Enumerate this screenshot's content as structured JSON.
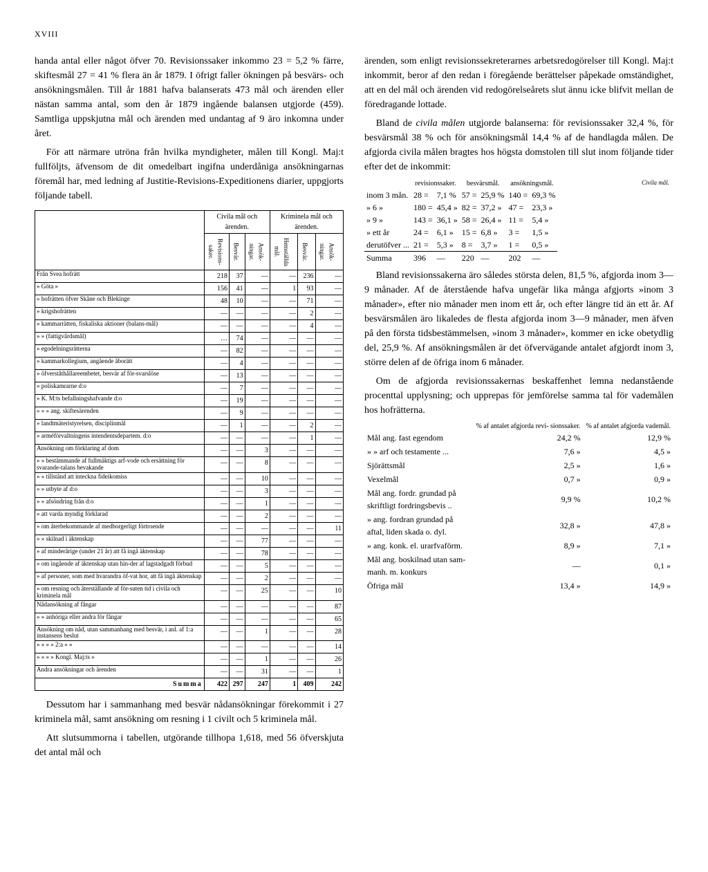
{
  "page_number": "XVIII",
  "left": {
    "p1": "handa antal eller något öfver 70. Revisionssaker inkommo 23 = 5,2 % färre, skiftesmål 27 = 41 % flera än år 1879. I öfrigt faller ökningen på besvärs- och ansökningsmålen. Till år 1881 hafva balanserats 473 mål och ärenden eller nästan samma antal, som den år 1879 ingående balansen utgjorde (459). Samtliga uppskjutna mål och ärenden med undantag af 9 äro inkomna under året.",
    "p2": "För att närmare utröna från hvilka myndigheter, målen till Kongl. Maj:t fullföljts, äfvensom de dit omedelbart ingifna underdåniga ansökningarnas föremål har, med ledning af Justitie-Revisions-Expeditionens diarier, uppgjorts följande tabell.",
    "table_headers": {
      "group1": "Civila mål och ärenden.",
      "group2": "Kriminela mål och ärenden.",
      "c1": "Revisions-saker.",
      "c2": "Besvär.",
      "c3": "Ansök-ningar.",
      "c4": "Hemställda mål.",
      "c5": "Besvär.",
      "c6": "Ansök-ningar."
    },
    "rows": [
      {
        "label": "Från Svea hofrätt",
        "v": [
          "218",
          "37",
          "—",
          "—",
          "236",
          "—"
        ]
      },
      {
        "label": "»   Göta   »",
        "v": [
          "156",
          "41",
          "—",
          "1",
          "93",
          "—"
        ]
      },
      {
        "label": "»   hofrätten öfver Skåne och Blekinge",
        "v": [
          "48",
          "10",
          "—",
          "—",
          "71",
          "—"
        ]
      },
      {
        "label": "»   krigshofrätten",
        "v": [
          "—",
          "—",
          "—",
          "—",
          "2",
          "—"
        ]
      },
      {
        "label": "»   kammarrätten, fiskaliska aktioner (balans-mål)",
        "v": [
          "—",
          "—",
          "—",
          "—",
          "4",
          "—"
        ]
      },
      {
        "label": "»      »      (fattigvårdsmål)",
        "v": [
          "…",
          "74",
          "—",
          "—",
          "—",
          "—"
        ]
      },
      {
        "label": "»   egodelningsrätterna",
        "v": [
          "—",
          "82",
          "—",
          "—",
          "—",
          "—"
        ]
      },
      {
        "label": "»   kammarkollegium, angående åborätt",
        "v": [
          "—",
          "4",
          "—",
          "—",
          "—",
          "—"
        ]
      },
      {
        "label": "»   öfverståthållareembetet, besvär af för-svarslöse",
        "v": [
          "—",
          "13",
          "—",
          "—",
          "—",
          "—"
        ]
      },
      {
        "label": "»   poliskamrarne             d:o",
        "v": [
          "—",
          "7",
          "—",
          "—",
          "—",
          "—"
        ]
      },
      {
        "label": "»   K. M:ts befallningshafvande   d:o",
        "v": [
          "—",
          "19",
          "—",
          "—",
          "—",
          "—"
        ]
      },
      {
        "label": "»      »      »      ang. skiftesärenden",
        "v": [
          "—",
          "9",
          "—",
          "—",
          "—",
          "—"
        ]
      },
      {
        "label": "»   landtmäteristyrelsen, disciplinmål",
        "v": [
          "—",
          "1",
          "—",
          "—",
          "2",
          "—"
        ]
      },
      {
        "label": "»   arméförvaltningens intendentsdepartem. d:o",
        "v": [
          "—",
          "—",
          "—",
          "—",
          "1",
          "—"
        ]
      },
      {
        "label": "Ansökning om förklaring af dom",
        "v": [
          "—",
          "—",
          "3",
          "—",
          "—",
          "—"
        ]
      },
      {
        "label": "»   »   bestämmande af fullmäktigs arf-vode och ersättning för svarande-talans bevakande",
        "v": [
          "—",
          "—",
          "8",
          "—",
          "—",
          "—"
        ]
      },
      {
        "label": "»   »   tillstånd att inteckna fideikomiss",
        "v": [
          "—",
          "—",
          "10",
          "—",
          "—",
          "—"
        ]
      },
      {
        "label": "»   »   utbyte af d:o",
        "v": [
          "—",
          "—",
          "3",
          "—",
          "—",
          "—"
        ]
      },
      {
        "label": "»   »   afsöndring från d:o",
        "v": [
          "—",
          "—",
          "1",
          "—",
          "—",
          "—"
        ]
      },
      {
        "label": "»   att varda myndig förklarad",
        "v": [
          "—",
          "—",
          "2",
          "—",
          "—",
          "—"
        ]
      },
      {
        "label": "»   om återbekommande af medborgerligt förtroende",
        "v": [
          "—",
          "—",
          "—",
          "—",
          "—",
          "11"
        ]
      },
      {
        "label": "»   »   skilnad i äktenskap",
        "v": [
          "—",
          "—",
          "77",
          "—",
          "—",
          "—"
        ]
      },
      {
        "label": "»   af minderårige (under 21 år) att få ingå äktenskap",
        "v": [
          "—",
          "—",
          "78",
          "—",
          "—",
          "—"
        ]
      },
      {
        "label": "»   om ingående af äktenskap utan hin-der af lagstadgadt förbud",
        "v": [
          "—",
          "—",
          "5",
          "—",
          "—",
          "—"
        ]
      },
      {
        "label": "»   af personer, som med hvarandra öf-vat hor, att få ingå äktenskap",
        "v": [
          "—",
          "—",
          "2",
          "—",
          "—",
          "—"
        ]
      },
      {
        "label": "»   om resning och återställande af för-suten tid i civila och kriminela mål",
        "v": [
          "—",
          "—",
          "25",
          "—",
          "—",
          "10"
        ]
      },
      {
        "label": "Nådansökning af fångar",
        "v": [
          "—",
          "—",
          "—",
          "—",
          "—",
          "87"
        ]
      },
      {
        "label": "»   » anhöriga eller andra för fångar",
        "v": [
          "—",
          "—",
          "—",
          "—",
          "—",
          "65"
        ]
      },
      {
        "label": "Ansökning om nåd, utan sammanhang med besvär, i anl. af 1:a instansens beslut",
        "v": [
          "—",
          "—",
          "1",
          "—",
          "—",
          "28"
        ]
      },
      {
        "label": "»   »   »   »   2:a   »   »",
        "v": [
          "—",
          "—",
          "—",
          "—",
          "—",
          "14"
        ]
      },
      {
        "label": "»   »   »   »   Kongl. Maj:ts   »",
        "v": [
          "—",
          "—",
          "1",
          "—",
          "—",
          "26"
        ]
      },
      {
        "label": "Andra ansökningar och ärenden",
        "v": [
          "—",
          "—",
          "31",
          "—",
          "—",
          "1"
        ]
      }
    ],
    "sum_label": "Summa",
    "sum": [
      "422",
      "297",
      "247",
      "1",
      "409",
      "242"
    ],
    "p3": "Dessutom har i sammanhang med besvär nådansökningar förekommit i 27 kriminela mål, samt ansökning om resning i 1 civilt och 5 kriminela mål.",
    "p4": "Att slutsummorna i tabellen, utgörande tillhopa 1,618, med 56 öfverskjuta det antal mål och"
  },
  "right": {
    "p1": "ärenden, som enligt revisionssekreterarnes arbetsredogörelser till Kongl. Maj:t inkommit, beror af den redan i föregående berättelser påpekade omständighet, att en del mål och ärenden vid redogörelseårets slut ännu icke blifvit mellan de föredragande lottade.",
    "margin_note": "Civila mål.",
    "p2a": "Bland de ",
    "p2b": "civila målen",
    "p2c": " utgjorde balanserna: för revisionssaker 32,4 %, för besvärsmål 38 % och för ansökningsmål 14,4 % af de handlagda målen. De afgjorda civila målen bragtes hos högsta domstolen till slut inom följande tider efter det de inkommit:",
    "timing_head": [
      "revisionssaker.",
      "besvärsmål.",
      "ansökningsmål."
    ],
    "timing_rows": [
      {
        "lead": "inom 3 mån.",
        "a": "28 =",
        "ap": "7,1 %",
        "b": "57 =",
        "bp": "25,9 %",
        "c": "140 =",
        "cp": "69,3 %"
      },
      {
        "lead": "»   6   »",
        "a": "180 =",
        "ap": "45,4 »",
        "b": "82 =",
        "bp": "37,2 »",
        "c": "47 =",
        "cp": "23,3 »"
      },
      {
        "lead": "»   9   »",
        "a": "143 =",
        "ap": "36,1 »",
        "b": "58 =",
        "bp": "26,4 »",
        "c": "11 =",
        "cp": "5,4 »"
      },
      {
        "lead": "»   ett år",
        "a": "24 =",
        "ap": "6,1 »",
        "b": "15 =",
        "bp": "6,8 »",
        "c": "3 =",
        "cp": "1,5 »"
      },
      {
        "lead": "derutöfver ...",
        "a": "21 =",
        "ap": "5,3 »",
        "b": "8 =",
        "bp": "3,7 »",
        "c": "1 =",
        "cp": "0,5 »"
      }
    ],
    "timing_sum": {
      "lead": "Summa",
      "a": "396",
      "ap": "—",
      "b": "220",
      "bp": "—",
      "c": "202",
      "cp": "—"
    },
    "p3": "Bland revisionssakerna äro således största delen, 81,5 %, afgjorda inom 3—9 månader. Af de återstående hafva ungefär lika många afgjorts »inom 3 månader», efter nio månader men inom ett år, och efter längre tid än ett år. Af besvärsmålen äro likaledes de flesta afgjorda inom 3—9 månader, men äfven på den första tidsbestämmelsen, »inom 3 månader», kommer en icke obetydlig del, 25,9 %. Af ansökningsmålen är det öfvervägande antalet afgjordt inom 3, större delen af de öfriga inom 6 månader.",
    "p4": "Om de afgjorda revisionssakernas beskaffenhet lemna nedanstående procenttal upplysning; och upprepas för jemförelse samma tal för vademålen hos hofrätterna.",
    "pct_head": [
      "% af antalet afgjorda revi- sionssaker.",
      "% af antalet afgjorda vademål."
    ],
    "pct_rows": [
      {
        "l": "Mål ang. fast egendom",
        "a": "24,2 %",
        "b": "12,9 %"
      },
      {
        "l": "»      »    arf och testamente ...",
        "a": "7,6  »",
        "b": "4,5  »"
      },
      {
        "l": "Sjörättsmål",
        "a": "2,5  »",
        "b": "1,6  »"
      },
      {
        "l": "Vexelmål",
        "a": "0,7  »",
        "b": "0,9  »"
      },
      {
        "l": "Mål  ang.  fordr.  grundad  på skriftligt fordringsbevis ..",
        "a": "9,9 %",
        "b": "10,2 %"
      },
      {
        "l": "»     ang. fordran grundad på aftal, liden skada o. dyl.",
        "a": "32,8  »",
        "b": "47,8  »"
      },
      {
        "l": "»     ang. konk. el. urarfvaförm.",
        "a": "8,9  »",
        "b": "7,1  »"
      },
      {
        "l": "Mål  ang. boskilnad utan sam- manh. m. konkurs",
        "a": "—",
        "b": "0,1  »"
      },
      {
        "l": "Öfriga mål",
        "a": "13,4  »",
        "b": "14,9  »"
      }
    ]
  }
}
